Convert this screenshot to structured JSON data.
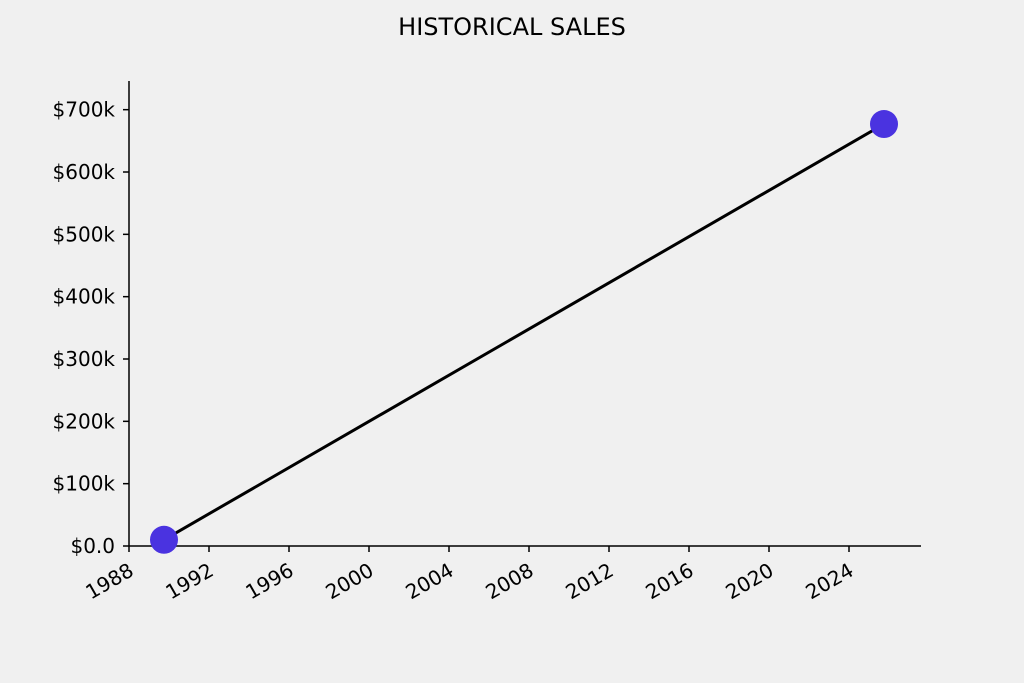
{
  "chart_data": {
    "type": "line",
    "title": "HISTORICAL SALES",
    "x": [
      1989.75,
      2025.75
    ],
    "series": [
      {
        "values": [
          10000,
          677000
        ],
        "color": "#000000",
        "marker_color": "#4a33e0"
      }
    ],
    "xlim": [
      1988,
      2027.6
    ],
    "xticks": [
      1988,
      1992,
      1996,
      2000,
      2004,
      2008,
      2012,
      2016,
      2020,
      2024
    ],
    "ylim": [
      0,
      746000
    ],
    "yticks": [
      {
        "value": 0,
        "label": "$0.0"
      },
      {
        "value": 100000,
        "label": "$100k"
      },
      {
        "value": 200000,
        "label": "$200k"
      },
      {
        "value": 300000,
        "label": "$300k"
      },
      {
        "value": 400000,
        "label": "$400k"
      },
      {
        "value": 500000,
        "label": "$500k"
      },
      {
        "value": 600000,
        "label": "$600k"
      },
      {
        "value": 700000,
        "label": "$700k"
      }
    ],
    "grid": false
  }
}
